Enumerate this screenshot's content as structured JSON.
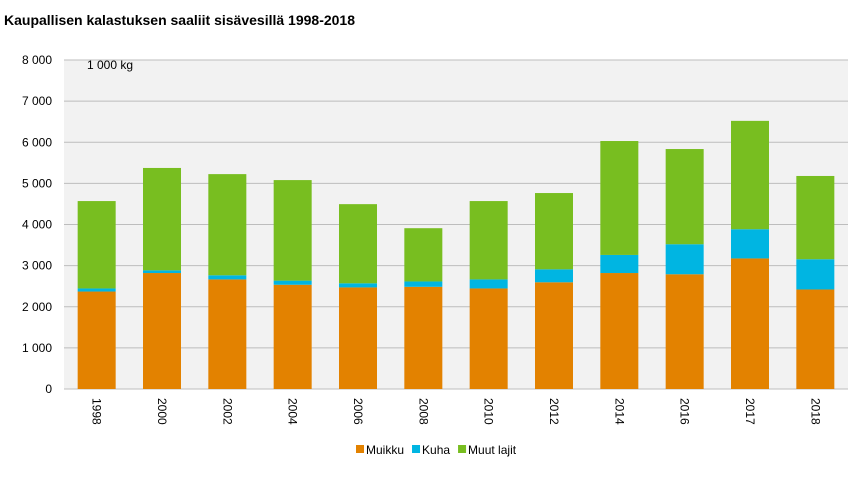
{
  "chart_data": {
    "type": "bar",
    "stacked": true,
    "title": "Kaupallisen kalastuksen saaliit sisävesillä 1998-2018",
    "unit_label": "1 000 kg",
    "xlabel": "",
    "ylabel": "",
    "ylim": [
      0,
      8000
    ],
    "yticks": [
      0,
      1000,
      2000,
      3000,
      4000,
      5000,
      6000,
      7000,
      8000
    ],
    "ytick_labels": [
      "0",
      "1 000",
      "2 000",
      "3 000",
      "4 000",
      "5 000",
      "6 000",
      "7 000",
      "8 000"
    ],
    "grid": true,
    "legend_position": "bottom",
    "categories": [
      "1998",
      "2000",
      "2002",
      "2004",
      "2006",
      "2008",
      "2010",
      "2012",
      "2014",
      "2016",
      "2017",
      "2018"
    ],
    "series": [
      {
        "name": "Muikku",
        "color": "#e38200",
        "values": [
          2370,
          2820,
          2665,
          2535,
          2470,
          2485,
          2445,
          2595,
          2820,
          2790,
          3175,
          2420
        ]
      },
      {
        "name": "Kuha",
        "color": "#00b5e2",
        "values": [
          75,
          65,
          100,
          100,
          100,
          130,
          220,
          315,
          440,
          730,
          710,
          735
        ]
      },
      {
        "name": "Muut lajit",
        "color": "#78be20",
        "values": [
          2125,
          2490,
          2460,
          2445,
          1925,
          1295,
          1905,
          1855,
          2770,
          2315,
          2635,
          2025
        ]
      }
    ]
  }
}
